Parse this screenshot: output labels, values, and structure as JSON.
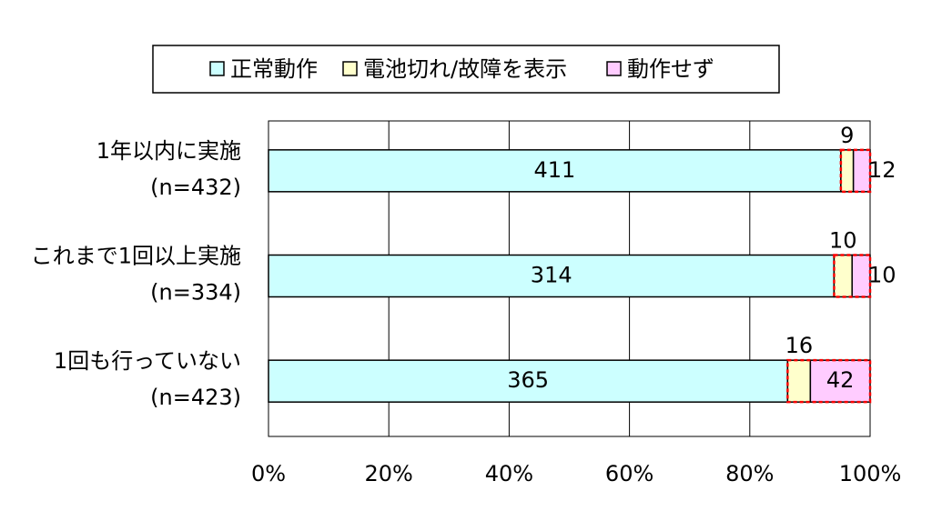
{
  "chart_data": {
    "type": "bar",
    "orientation": "horizontal",
    "stacking": "percent",
    "categories": [
      [
        "1年以内に実施",
        "(n=432)"
      ],
      [
        "これまで1回以上実施",
        "(n=334)"
      ],
      [
        "1回も行っていない",
        "(n=423)"
      ]
    ],
    "series": [
      {
        "name": "正常動作",
        "color": "#ccffff",
        "values": [
          411,
          314,
          365
        ]
      },
      {
        "name": "電池切れ/故障を表示",
        "color": "#ffffcc",
        "values": [
          9,
          10,
          16
        ]
      },
      {
        "name": "動作せず",
        "color": "#ffccff",
        "values": [
          12,
          10,
          42
        ]
      }
    ],
    "xlim": [
      0,
      100
    ],
    "xticks": [
      {
        "value": 0,
        "label": "0%"
      },
      {
        "value": 20,
        "label": "20%"
      },
      {
        "value": 40,
        "label": "40%"
      },
      {
        "value": 60,
        "label": "60%"
      },
      {
        "value": 80,
        "label": "80%"
      },
      {
        "value": 100,
        "label": "100%"
      }
    ],
    "grid": true,
    "legend": "top",
    "highlight": {
      "series": [
        1,
        2
      ],
      "color": "#ff0000"
    }
  }
}
